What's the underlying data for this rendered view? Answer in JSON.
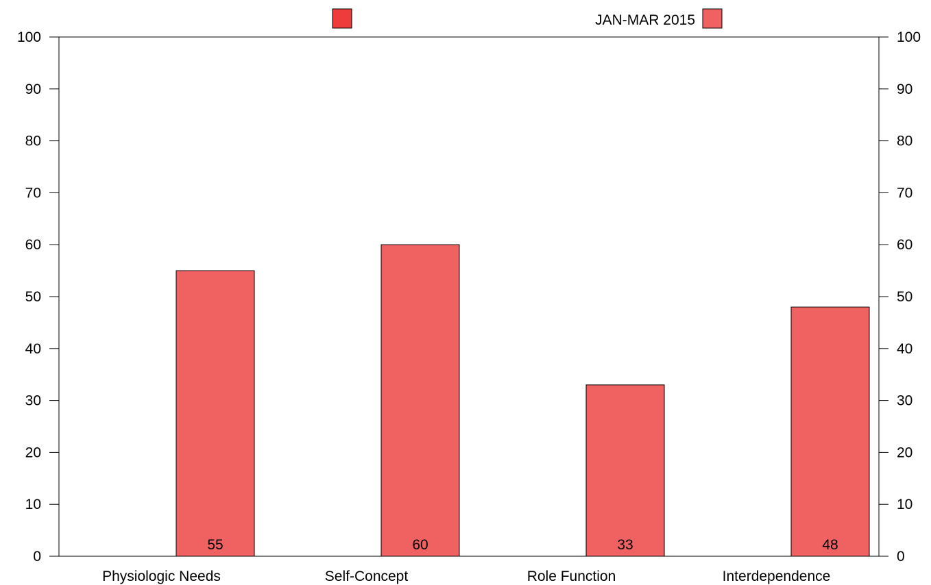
{
  "chart_data": {
    "type": "bar",
    "categories": [
      "Physiologic Needs",
      "Self-Concept",
      "Role Function",
      "Interdependence"
    ],
    "series": [
      {
        "name": "",
        "color": "#ee3b3b",
        "values": [
          0,
          0,
          0,
          0
        ]
      },
      {
        "name": "JAN-MAR 2015",
        "color": "#f06262",
        "values": [
          55,
          60,
          33,
          48
        ]
      }
    ],
    "ylim": [
      0,
      100
    ],
    "yticks": [
      0,
      10,
      20,
      30,
      40,
      50,
      60,
      70,
      80,
      90,
      100
    ],
    "xlabel": "",
    "ylabel": "",
    "grid": false,
    "legend_position": "top-center",
    "secondary_y_axis_mirrored": true
  }
}
